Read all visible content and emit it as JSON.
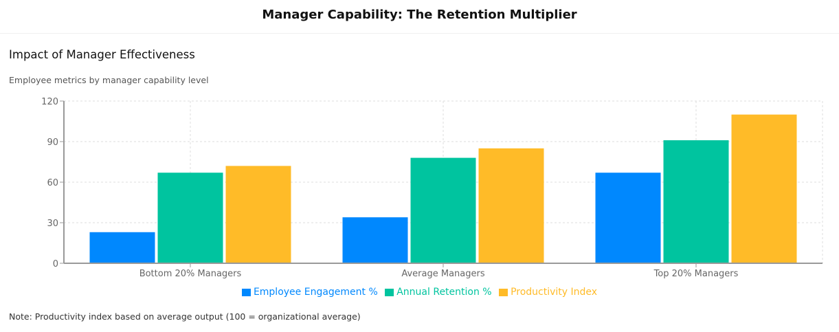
{
  "header": {
    "title": "Manager Capability: The Retention Multiplier"
  },
  "card": {
    "title": "Impact of Manager Effectiveness",
    "description": "Employee metrics by manager capability level",
    "note": "Note: Productivity index based on average output (100 = organizational average)"
  },
  "chart_data": {
    "type": "bar",
    "title": "Impact of Manager Effectiveness",
    "subtitle": "Employee metrics by manager capability level",
    "categories": [
      "Bottom 20% Managers",
      "Average Managers",
      "Top 20% Managers"
    ],
    "series": [
      {
        "name": "Employee Engagement %",
        "color": "#0088FE",
        "values": [
          23,
          34,
          67
        ]
      },
      {
        "name": "Annual Retention %",
        "color": "#00C49F",
        "values": [
          67,
          78,
          91
        ]
      },
      {
        "name": "Productivity Index",
        "color": "#FFBB28",
        "values": [
          72,
          85,
          110
        ]
      }
    ],
    "yticks": [
      "0",
      "30",
      "60",
      "90",
      "120"
    ],
    "ylim": [
      0,
      120
    ],
    "xlabel": "",
    "ylabel": "",
    "grid": true,
    "legend": "bottom"
  }
}
